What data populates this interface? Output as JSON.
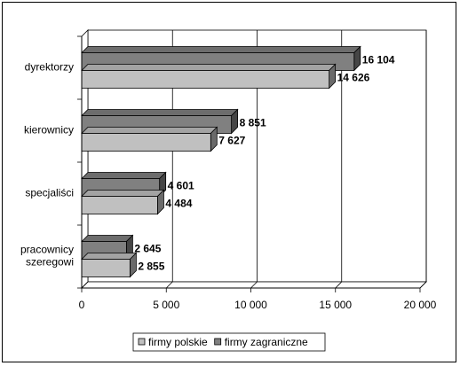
{
  "chart_data": {
    "type": "bar",
    "orientation": "horizontal",
    "style": "3d-clustered",
    "categories": [
      "dyrektorzy",
      "kierownicy",
      "specjaliści",
      "pracownicy szeregowi"
    ],
    "category_lines": [
      [
        "dyrektorzy"
      ],
      [
        "kierownicy"
      ],
      [
        "specjaliści"
      ],
      [
        "pracownicy",
        "szeregowi"
      ]
    ],
    "series": [
      {
        "name": "firmy zagraniczne",
        "values": [
          16104,
          8851,
          4601,
          2645
        ],
        "labels": [
          "16 104",
          "8 851",
          "4 601",
          "2 645"
        ],
        "color": "#808080"
      },
      {
        "name": "firmy polskie",
        "values": [
          14626,
          7627,
          4484,
          2855
        ],
        "labels": [
          "14 626",
          "7 627",
          "4 484",
          "2 855"
        ],
        "color": "#c0c0c0"
      }
    ],
    "xlim": [
      0,
      20000
    ],
    "ticks": [
      0,
      5000,
      10000,
      15000,
      20000
    ],
    "tick_labels": [
      "0",
      "5 000",
      "10 000",
      "15 000",
      "20 000"
    ],
    "grid": true,
    "legend_position": "bottom",
    "legend_order": [
      "firmy polskie",
      "firmy zagraniczne"
    ],
    "title": "",
    "xlabel": "",
    "ylabel": ""
  }
}
